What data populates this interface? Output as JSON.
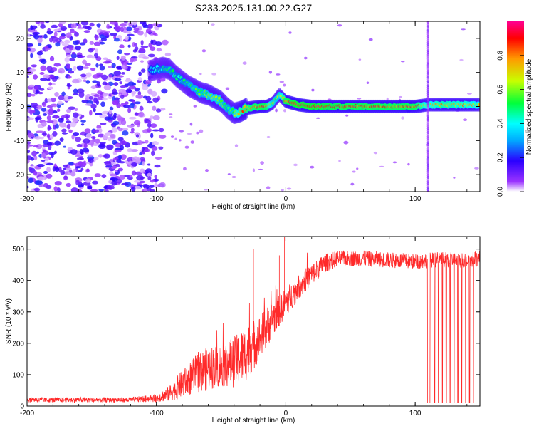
{
  "title": "S233.2025.131.00.22.G27",
  "chart_data": [
    {
      "type": "heatmap",
      "panel": "spectrogram",
      "xlabel": "Height of straight line (km)",
      "ylabel": "Frequency (Hz)",
      "xlim": [
        -200,
        150
      ],
      "ylim": [
        -25,
        25
      ],
      "xticks": [
        -200,
        -100,
        0,
        100
      ],
      "yticks": [
        -20,
        -10,
        0,
        10,
        20
      ],
      "colorbar": {
        "label": "Normalized spectral amplitude",
        "range": [
          0,
          1
        ],
        "ticks": [
          0.0,
          0.2,
          0.4,
          0.6,
          0.8
        ],
        "colormap": [
          "#ffffff",
          "#7a00ff",
          "#0000ff",
          "#00ffff",
          "#00ff00",
          "#ffff00",
          "#ff0000",
          "#ff007f"
        ]
      },
      "noise_region_x": [
        -200,
        -90
      ],
      "ridge": {
        "x": [
          -105,
          -95,
          -90,
          -85,
          -80,
          -75,
          -70,
          -65,
          -60,
          -55,
          -50,
          -45,
          -40,
          -35,
          -30,
          -20,
          -15,
          -10,
          -5,
          0,
          10,
          20,
          40,
          60,
          80,
          100,
          110,
          120,
          140,
          150
        ],
        "y": [
          10.5,
          11.5,
          11,
          9,
          7.5,
          6,
          5,
          4,
          3.5,
          2.5,
          1.5,
          -0.5,
          -2,
          -1.5,
          -0.5,
          0,
          0,
          1,
          3.5,
          1.5,
          0.5,
          0,
          0,
          0,
          0,
          0,
          0.5,
          0.5,
          0.5,
          0.5
        ],
        "amplitude": [
          0.35,
          0.45,
          0.5,
          0.45,
          0.45,
          0.5,
          0.55,
          0.55,
          0.6,
          0.65,
          0.6,
          0.5,
          0.6,
          0.8,
          0.85,
          0.9,
          0.9,
          0.6,
          0.6,
          0.9,
          0.95,
          0.95,
          0.9,
          0.9,
          0.9,
          0.9,
          0.7,
          0.8,
          0.75,
          0.7
        ]
      },
      "grid": false
    },
    {
      "type": "line",
      "panel": "snr",
      "xlabel": "Height of straight line (km)",
      "ylabel": "SNR (10 * v/v)",
      "xlim": [
        -200,
        150
      ],
      "ylim": [
        0,
        540
      ],
      "xticks": [
        -200,
        -100,
        0,
        100
      ],
      "yticks": [
        0,
        100,
        200,
        300,
        400,
        500
      ],
      "color": "#ff2a2a",
      "envelope": {
        "x": [
          -200,
          -120,
          -100,
          -90,
          -80,
          -70,
          -60,
          -50,
          -40,
          -30,
          -20,
          -10,
          0,
          10,
          20,
          30,
          40,
          60,
          80,
          100,
          110,
          120,
          140,
          150
        ],
        "y": [
          20,
          20,
          25,
          40,
          70,
          100,
          120,
          130,
          140,
          170,
          220,
          280,
          330,
          380,
          420,
          455,
          470,
          470,
          465,
          460,
          465,
          465,
          465,
          470
        ],
        "noise": [
          8,
          8,
          12,
          25,
          45,
          60,
          70,
          70,
          80,
          90,
          70,
          60,
          45,
          40,
          35,
          30,
          25,
          25,
          25,
          25,
          25,
          25,
          25,
          25
        ]
      },
      "spikes": {
        "x": [
          -25,
          -5,
          -1
        ],
        "y": [
          500,
          480,
          540
        ]
      },
      "dropouts_x": [
        110,
        111,
        115,
        118,
        121,
        124,
        127,
        130,
        133,
        136,
        139,
        142,
        145
      ],
      "dropout_level": 10,
      "grid": false
    }
  ]
}
